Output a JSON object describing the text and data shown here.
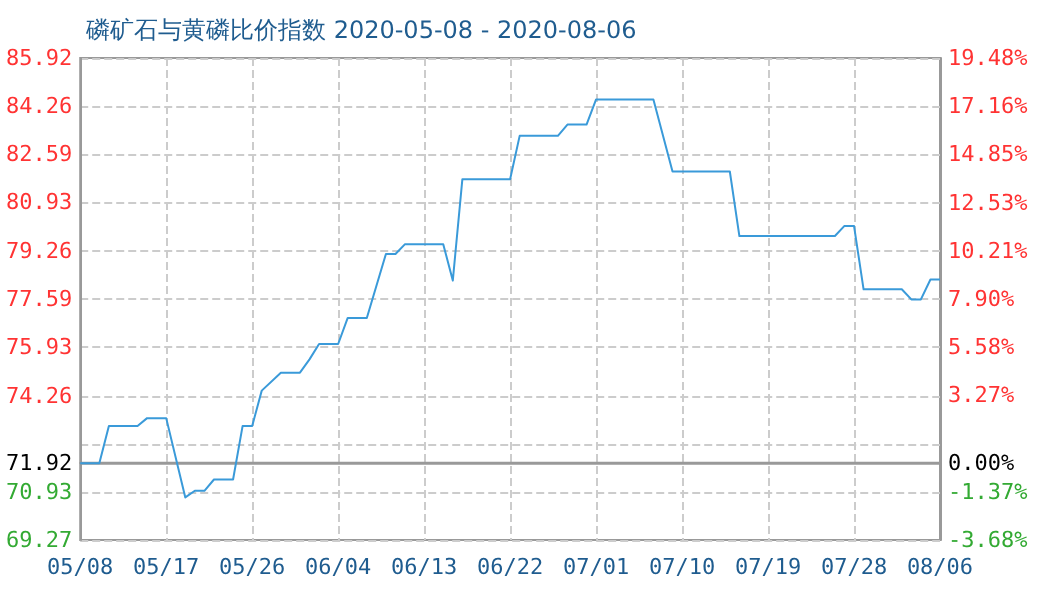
{
  "chart_data": {
    "type": "line",
    "title": "磷矿石与黄磷比价指数 2020-05-08 - 2020-08-06",
    "x": [
      "2020-05-08",
      "2020-05-10",
      "2020-05-11",
      "2020-05-14",
      "2020-05-15",
      "2020-05-17",
      "2020-05-19",
      "2020-05-20",
      "2020-05-21",
      "2020-05-22",
      "2020-05-24",
      "2020-05-25",
      "2020-05-26",
      "2020-05-27",
      "2020-05-29",
      "2020-05-31",
      "2020-06-01",
      "2020-06-02",
      "2020-06-04",
      "2020-06-05",
      "2020-06-07",
      "2020-06-09",
      "2020-06-10",
      "2020-06-11",
      "2020-06-15",
      "2020-06-16",
      "2020-06-17",
      "2020-06-22",
      "2020-06-23",
      "2020-06-27",
      "2020-06-28",
      "2020-06-30",
      "2020-07-01",
      "2020-07-07",
      "2020-07-09",
      "2020-07-15",
      "2020-07-16",
      "2020-07-26",
      "2020-07-27",
      "2020-07-28",
      "2020-07-29",
      "2020-08-02",
      "2020-08-03",
      "2020-08-04",
      "2020-08-05",
      "2020-08-06"
    ],
    "series": [
      {
        "color": "#3a9ad9",
        "values": [
          71.92,
          71.92,
          73.21,
          73.21,
          73.48,
          73.48,
          70.74,
          70.97,
          70.97,
          71.36,
          71.36,
          73.21,
          73.21,
          74.43,
          75.05,
          75.05,
          75.51,
          76.04,
          76.04,
          76.94,
          76.94,
          79.15,
          79.15,
          79.49,
          79.49,
          78.23,
          81.73,
          81.73,
          83.23,
          83.23,
          83.62,
          83.62,
          84.49,
          84.49,
          82.0,
          82.0,
          79.77,
          79.77,
          80.12,
          80.12,
          77.93,
          77.93,
          77.58,
          77.58,
          78.27,
          78.27
        ]
      }
    ],
    "xlim": [
      "2020-05-08",
      "2020-08-06"
    ],
    "xticks": [
      {
        "value": "2020-05-08",
        "label": "05/08"
      },
      {
        "value": "2020-05-17",
        "label": "05/17"
      },
      {
        "value": "2020-05-26",
        "label": "05/26"
      },
      {
        "value": "2020-06-04",
        "label": "06/04"
      },
      {
        "value": "2020-06-13",
        "label": "06/13"
      },
      {
        "value": "2020-06-22",
        "label": "06/22"
      },
      {
        "value": "2020-07-01",
        "label": "07/01"
      },
      {
        "value": "2020-07-10",
        "label": "07/10"
      },
      {
        "value": "2020-07-19",
        "label": "07/19"
      },
      {
        "value": "2020-07-28",
        "label": "07/28"
      },
      {
        "value": "2020-08-06",
        "label": "08/06"
      }
    ],
    "ylim": [
      69.27,
      85.92
    ],
    "yticks": [
      69.27,
      70.93,
      71.92,
      {
        "value": 72.6,
        "label": null
      },
      74.26,
      75.93,
      77.59,
      79.26,
      80.93,
      82.59,
      84.26,
      85.92
    ],
    "y2lim": [
      -3.68,
      19.48
    ],
    "y2ticks": [
      {
        "value": -3.68,
        "label": "-3.68%"
      },
      {
        "value": -1.37,
        "label": "-1.37%"
      },
      {
        "value": 0,
        "label": "0.00%"
      },
      {
        "value": 3.27,
        "label": "3.27%"
      },
      {
        "value": 5.58,
        "label": "5.58%"
      },
      {
        "value": 7.9,
        "label": "7.90%"
      },
      {
        "value": 10.21,
        "label": "10.21%"
      },
      {
        "value": 12.53,
        "label": "12.53%"
      },
      {
        "value": 14.85,
        "label": "14.85%"
      },
      {
        "value": 17.16,
        "label": "17.16%"
      },
      {
        "value": 19.48,
        "label": "19.48%"
      }
    ],
    "ref_lines": [
      {
        "axis": "y",
        "value": 71.92,
        "color": "#999999"
      }
    ],
    "grid": true,
    "marker": "none",
    "line_style": "solid"
  }
}
